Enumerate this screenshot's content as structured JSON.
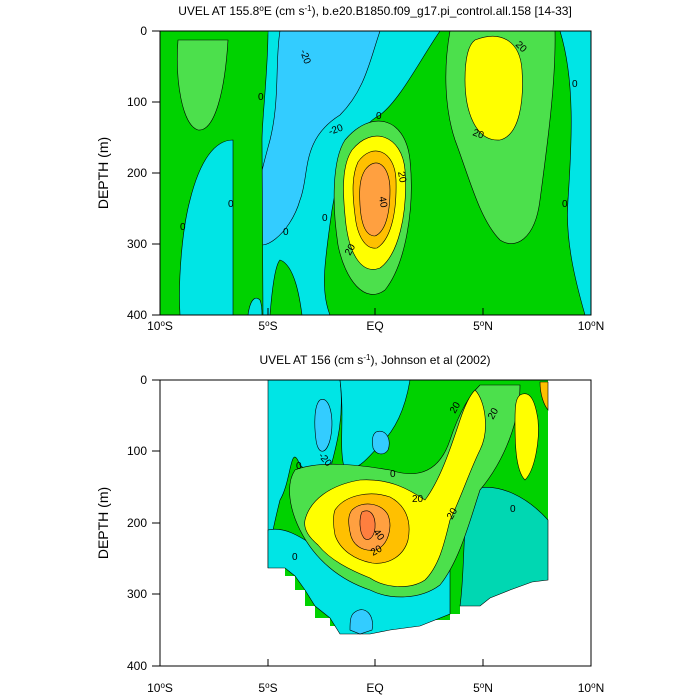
{
  "chart_data": [
    {
      "type": "contour",
      "title": "UVEL AT 155.8°E (cm s-1), b.e20.B1850.f09_g17.pi_control.all.158 [14-33]",
      "title_parts": {
        "pre": "UVEL AT 155.8",
        "deg": "o",
        "post1": "E (cm s",
        "exp": "-1",
        "post2": "), b.e20.B1850.f09_g17.pi_control.all.158 [14-33]"
      },
      "ylabel": "DEPTH (m)",
      "xlim": [
        -10,
        10
      ],
      "ylim": [
        400,
        0
      ],
      "xticks": [
        -10,
        -5,
        0,
        5,
        10
      ],
      "yticks": [
        0,
        100,
        200,
        300,
        400
      ],
      "contour_labels": [
        "-20",
        "0",
        "0",
        "-20",
        "0",
        "20",
        "40",
        "20",
        "0",
        "0",
        "0",
        "0",
        "20",
        "20",
        "0",
        "0"
      ],
      "max_value_label": "40"
    },
    {
      "type": "contour",
      "title": "UVEL AT 156 (cm s-1), Johnson et al (2002)",
      "title_parts": {
        "pre": "UVEL AT 156 (cm s",
        "exp": "-1",
        "post": "), Johnson et al (2002)"
      },
      "ylabel": "DEPTH (m)",
      "xlim": [
        -10,
        10
      ],
      "ylim": [
        400,
        0
      ],
      "xticks": [
        -10,
        -5,
        0,
        5,
        10
      ],
      "yticks": [
        0,
        100,
        200,
        300,
        400
      ],
      "data_extent_lat": [
        -5,
        8
      ],
      "contour_labels": [
        "-20",
        "0",
        "0",
        "20",
        "40",
        "20",
        "20",
        "20",
        "20",
        "0",
        "0"
      ]
    }
  ],
  "tick_labels": [
    {
      "v": "10",
      "d": "o",
      "h": "S"
    },
    {
      "v": "5",
      "d": "o",
      "h": "S"
    },
    {
      "v": "EQ",
      "d": "",
      "h": ""
    },
    {
      "v": "5",
      "d": "o",
      "h": "N"
    },
    {
      "v": "10",
      "d": "o",
      "h": "N"
    }
  ],
  "colors": {
    "neg20": "#00e5e5",
    "neg10": "#33ccff",
    "zero_neg": "#00d7b2",
    "zero_pos": "#00d200",
    "pos10": "#4ce04c",
    "pos20": "#ffff00",
    "pos30": "#ffc000",
    "pos40": "#ffa040",
    "pos50": "#ff7f3f",
    "line": "#000000"
  }
}
